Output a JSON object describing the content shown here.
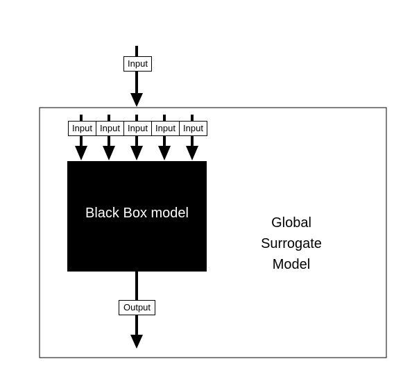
{
  "diagram": {
    "top_input_label": "Input",
    "inner_inputs": [
      "Input",
      "Input",
      "Input",
      "Input",
      "Input"
    ],
    "black_box_label": "Black Box model",
    "output_label": "Output",
    "surrogate_label_lines": [
      "Global",
      "Surrogate",
      "Model"
    ]
  }
}
